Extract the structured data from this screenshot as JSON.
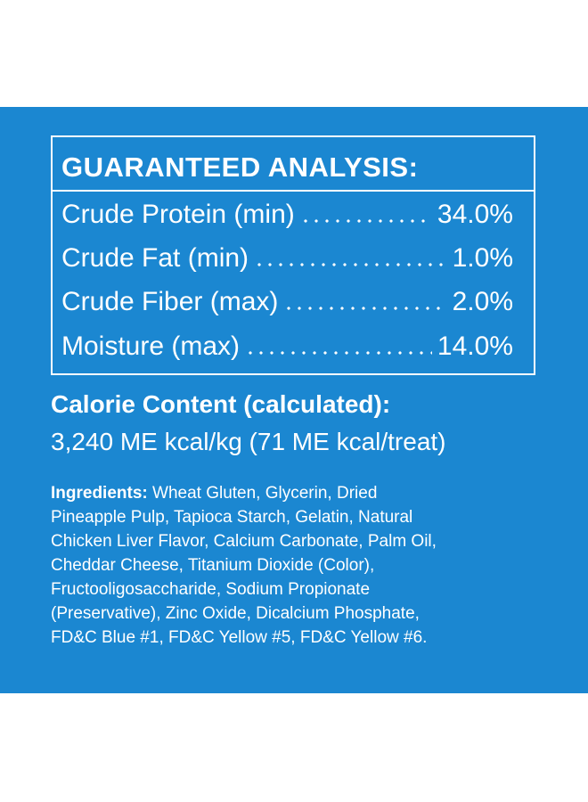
{
  "analysis": {
    "title": "GUARANTEED ANALYSIS:",
    "rows": [
      {
        "label": "Crude Protein (min)",
        "value": "34.0%"
      },
      {
        "label": "Crude Fat (min)",
        "value": "1.0%"
      },
      {
        "label": "Crude Fiber (max)",
        "value": "2.0%"
      },
      {
        "label": "Moisture (max)",
        "value": "14.0%"
      }
    ]
  },
  "calorie": {
    "title": "Calorie Content (calculated):",
    "value": "3,240 ME kcal/kg (71 ME kcal/treat)"
  },
  "ingredients": {
    "label": "Ingredients:",
    "lines": [
      "Wheat Gluten, Glycerin, Dried",
      "Pineapple Pulp, Tapioca Starch, Gelatin, Natural",
      "Chicken Liver Flavor, Calcium Carbonate, Palm Oil,",
      "Cheddar Cheese, Titanium Dioxide (Color),",
      "Fructooligosaccharide, Sodium Propionate",
      "(Preservative), Zinc Oxide, Dicalcium Phosphate,",
      "FD&C Blue #1, FD&C Yellow #5, FD&C Yellow #6."
    ]
  }
}
